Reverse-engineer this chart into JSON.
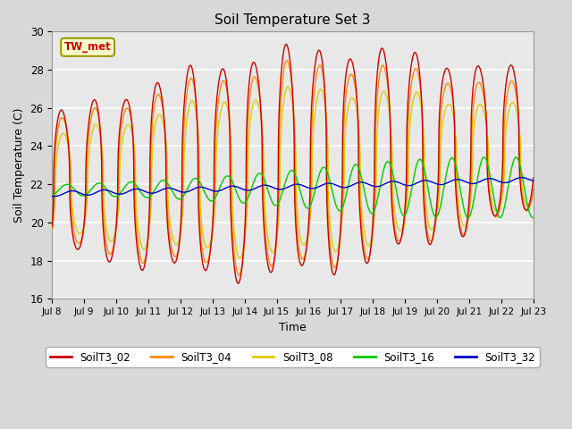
{
  "title": "Soil Temperature Set 3",
  "xlabel": "Time",
  "ylabel": "Soil Temperature (C)",
  "ylim": [
    16,
    30
  ],
  "annotation": "TW_met",
  "series_names": [
    "SoilT3_02",
    "SoilT3_04",
    "SoilT3_08",
    "SoilT3_16",
    "SoilT3_32"
  ],
  "series_colors": [
    "#cc0000",
    "#ff8800",
    "#ddcc00",
    "#00cc00",
    "#0000cc"
  ],
  "xtick_labels": [
    "Jul 8",
    "Jul 9",
    "Jul 10",
    "Jul 11",
    "Jul 12",
    "Jul 13",
    "Jul 14",
    "Jul 15",
    "Jul 16",
    "Jul 17",
    "Jul 18",
    "Jul 19",
    "Jul 20",
    "Jul 21",
    "Jul 22",
    "Jul 23"
  ],
  "ytick_values": [
    16,
    18,
    20,
    22,
    24,
    26,
    28,
    30
  ],
  "plot_bg_color": "#e8e8e8",
  "fig_bg_color": "#d8d8d8",
  "grid_color": "#ffffff"
}
